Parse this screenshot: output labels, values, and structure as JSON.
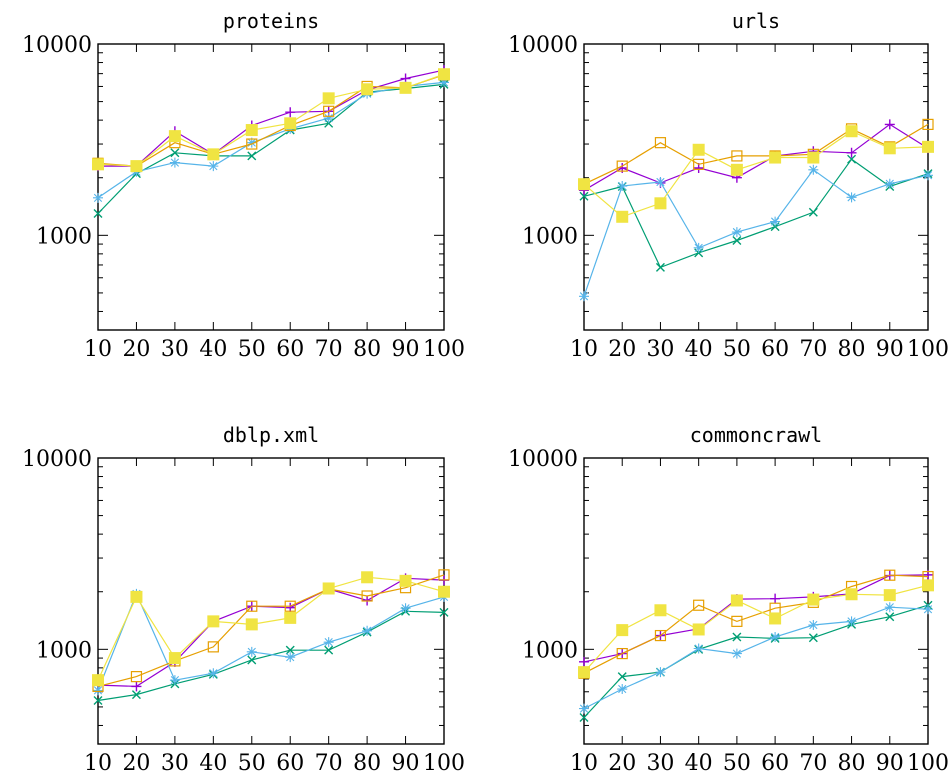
{
  "figure": {
    "colors": {
      "s1": "#9400d3",
      "s2": "#009e73",
      "s3": "#56b4e9",
      "s4": "#e69f00",
      "s5": "#f0e442"
    },
    "markers": {
      "s1": "plus",
      "s2": "cross",
      "s3": "star",
      "s4": "open-square",
      "s5": "filled-square"
    }
  },
  "chart_data": [
    {
      "type": "line",
      "title": "proteins",
      "log_y": true,
      "ylim": [
        320,
        10000
      ],
      "yticks": [
        1000,
        10000
      ],
      "ytick_labels": [
        "1000",
        "10000"
      ],
      "x": [
        10,
        20,
        30,
        40,
        50,
        60,
        70,
        80,
        90,
        100
      ],
      "xtick_labels": [
        "10",
        "20",
        "30",
        "40",
        "50",
        "60",
        "70",
        "80",
        "90",
        "100"
      ],
      "series": [
        {
          "key": "s1",
          "values": [
            2300,
            2300,
            3500,
            2650,
            3750,
            4400,
            4450,
            5750,
            6600,
            7300
          ]
        },
        {
          "key": "s2",
          "values": [
            1300,
            2100,
            2700,
            2600,
            2600,
            3550,
            3850,
            5600,
            5850,
            6150
          ]
        },
        {
          "key": "s3",
          "values": [
            1570,
            2150,
            2400,
            2300,
            3050,
            3600,
            4100,
            5500,
            6000,
            6300
          ]
        },
        {
          "key": "s4",
          "values": [
            2380,
            2300,
            3050,
            2650,
            3000,
            3750,
            4450,
            6000,
            5900,
            6900
          ]
        },
        {
          "key": "s5",
          "values": [
            2350,
            2300,
            3300,
            2650,
            3550,
            3850,
            5200,
            5800,
            5900,
            6950
          ]
        }
      ]
    },
    {
      "type": "line",
      "title": "urls",
      "log_y": true,
      "ylim": [
        320,
        10000
      ],
      "yticks": [
        1000,
        10000
      ],
      "ytick_labels": [
        "1000",
        "10000"
      ],
      "x": [
        10,
        20,
        30,
        40,
        50,
        60,
        70,
        80,
        90,
        100
      ],
      "xtick_labels": [
        "10",
        "20",
        "30",
        "40",
        "50",
        "60",
        "70",
        "80",
        "90",
        "100"
      ],
      "series": [
        {
          "key": "s1",
          "values": [
            1720,
            2250,
            1880,
            2250,
            2000,
            2600,
            2750,
            2700,
            3800,
            2850
          ]
        },
        {
          "key": "s2",
          "values": [
            1600,
            1800,
            680,
            810,
            940,
            1110,
            1320,
            2500,
            1800,
            2100
          ]
        },
        {
          "key": "s3",
          "values": [
            480,
            1810,
            1900,
            860,
            1040,
            1180,
            2200,
            1580,
            1860,
            2060
          ]
        },
        {
          "key": "s4",
          "values": [
            1850,
            2300,
            3050,
            2350,
            2600,
            2600,
            2650,
            3600,
            2900,
            3800
          ]
        },
        {
          "key": "s5",
          "values": [
            1850,
            1250,
            1470,
            2800,
            2200,
            2550,
            2550,
            3500,
            2850,
            2900
          ]
        }
      ]
    },
    {
      "type": "line",
      "title": "dblp.xml",
      "log_y": true,
      "ylim": [
        320,
        10000
      ],
      "yticks": [
        1000,
        10000
      ],
      "ytick_labels": [
        "1000",
        "10000"
      ],
      "x": [
        10,
        20,
        30,
        40,
        50,
        60,
        70,
        80,
        90,
        100
      ],
      "xtick_labels": [
        "10",
        "20",
        "30",
        "40",
        "50",
        "60",
        "70",
        "80",
        "90",
        "100"
      ],
      "series": [
        {
          "key": "s1",
          "values": [
            650,
            640,
            860,
            1400,
            1680,
            1650,
            2070,
            1800,
            2350,
            2300
          ]
        },
        {
          "key": "s2",
          "values": [
            540,
            580,
            660,
            740,
            880,
            990,
            990,
            1230,
            1580,
            1560
          ]
        },
        {
          "key": "s3",
          "values": [
            610,
            1950,
            690,
            750,
            970,
            910,
            1090,
            1250,
            1640,
            1880
          ]
        },
        {
          "key": "s4",
          "values": [
            640,
            720,
            870,
            1030,
            1680,
            1680,
            2070,
            1900,
            2100,
            2450
          ]
        },
        {
          "key": "s5",
          "values": [
            690,
            1880,
            900,
            1400,
            1350,
            1460,
            2080,
            2380,
            2280,
            2000
          ]
        }
      ]
    },
    {
      "type": "line",
      "title": "commoncrawl",
      "log_y": true,
      "ylim": [
        320,
        10000
      ],
      "yticks": [
        1000,
        10000
      ],
      "ytick_labels": [
        "1000",
        "10000"
      ],
      "x": [
        10,
        20,
        30,
        40,
        50,
        60,
        70,
        80,
        90,
        100
      ],
      "xtick_labels": [
        "10",
        "20",
        "30",
        "40",
        "50",
        "60",
        "70",
        "80",
        "90",
        "100"
      ],
      "series": [
        {
          "key": "s1",
          "values": [
            860,
            950,
            1180,
            1280,
            1830,
            1840,
            1880,
            1950,
            2430,
            2450
          ]
        },
        {
          "key": "s2",
          "values": [
            440,
            720,
            760,
            1000,
            1160,
            1140,
            1150,
            1350,
            1480,
            1700
          ]
        },
        {
          "key": "s3",
          "values": [
            490,
            620,
            760,
            1010,
            950,
            1160,
            1340,
            1400,
            1660,
            1620
          ]
        },
        {
          "key": "s4",
          "values": [
            750,
            950,
            1180,
            1700,
            1400,
            1640,
            1760,
            2130,
            2440,
            2400
          ]
        },
        {
          "key": "s5",
          "values": [
            760,
            1260,
            1600,
            1270,
            1800,
            1450,
            1820,
            1940,
            1920,
            2160
          ]
        }
      ]
    }
  ]
}
